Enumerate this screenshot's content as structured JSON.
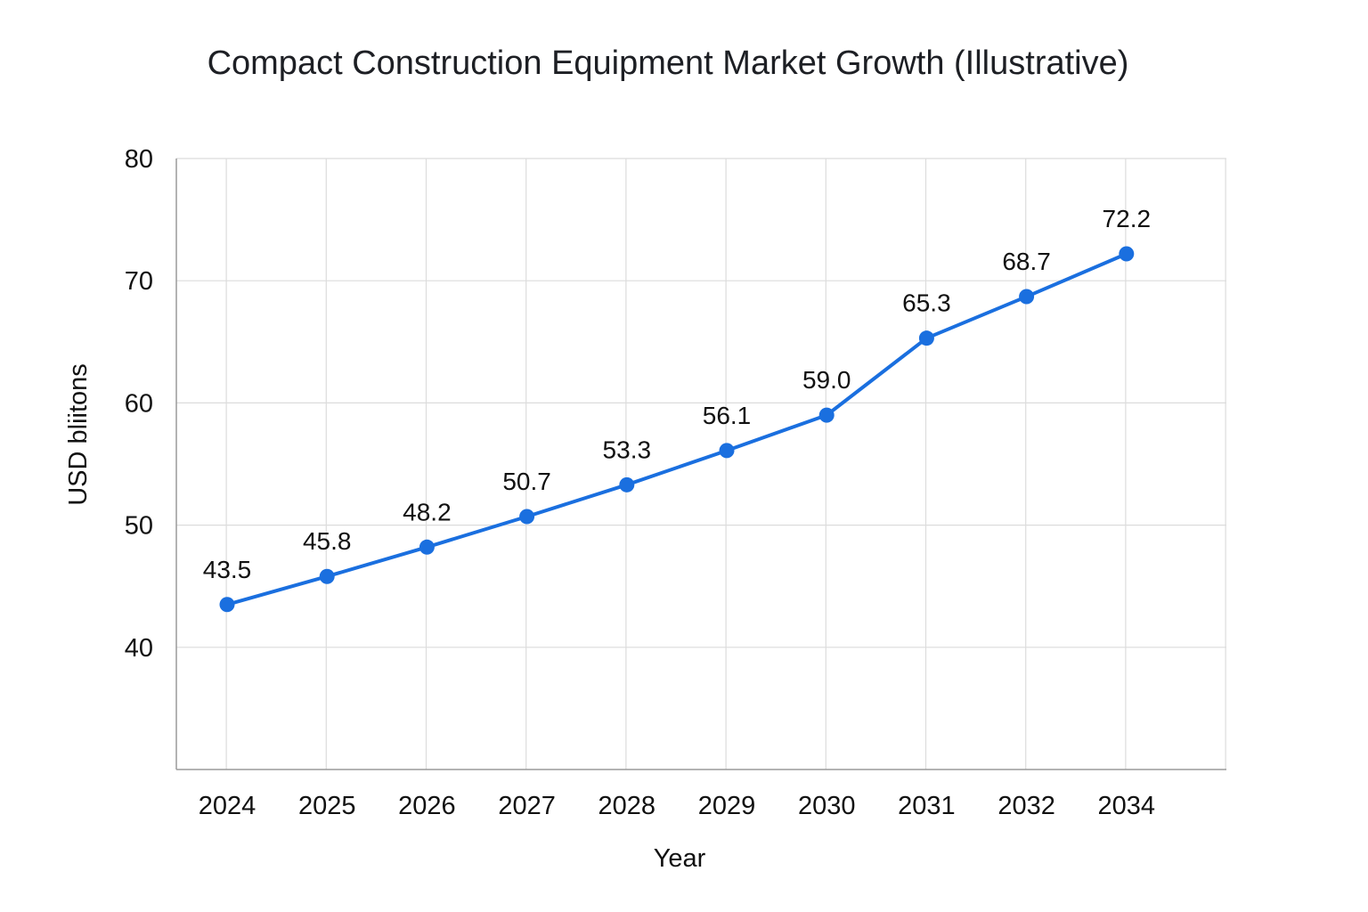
{
  "chart_data": {
    "type": "line",
    "title": "Compact Construction Equipment Market Growth (Illustrative)",
    "xlabel": "Year",
    "ylabel": "USD bliitons",
    "categories": [
      "2024",
      "2025",
      "2026",
      "2027",
      "2028",
      "2029",
      "2030",
      "2031",
      "2032",
      "2034"
    ],
    "values": [
      43.5,
      45.8,
      48.2,
      50.7,
      53.3,
      56.1,
      59.0,
      65.3,
      68.7,
      72.2
    ],
    "data_labels": [
      "43.5",
      "45.8",
      "48.2",
      "50.7",
      "53.3",
      "56.1",
      "59.0",
      "65.3",
      "68.7",
      "72.2"
    ],
    "ylim": [
      30,
      80
    ],
    "yticks": [
      40,
      50,
      60,
      70,
      80
    ],
    "grid": true,
    "legend": "none",
    "line_color": "#1a6fdf"
  }
}
